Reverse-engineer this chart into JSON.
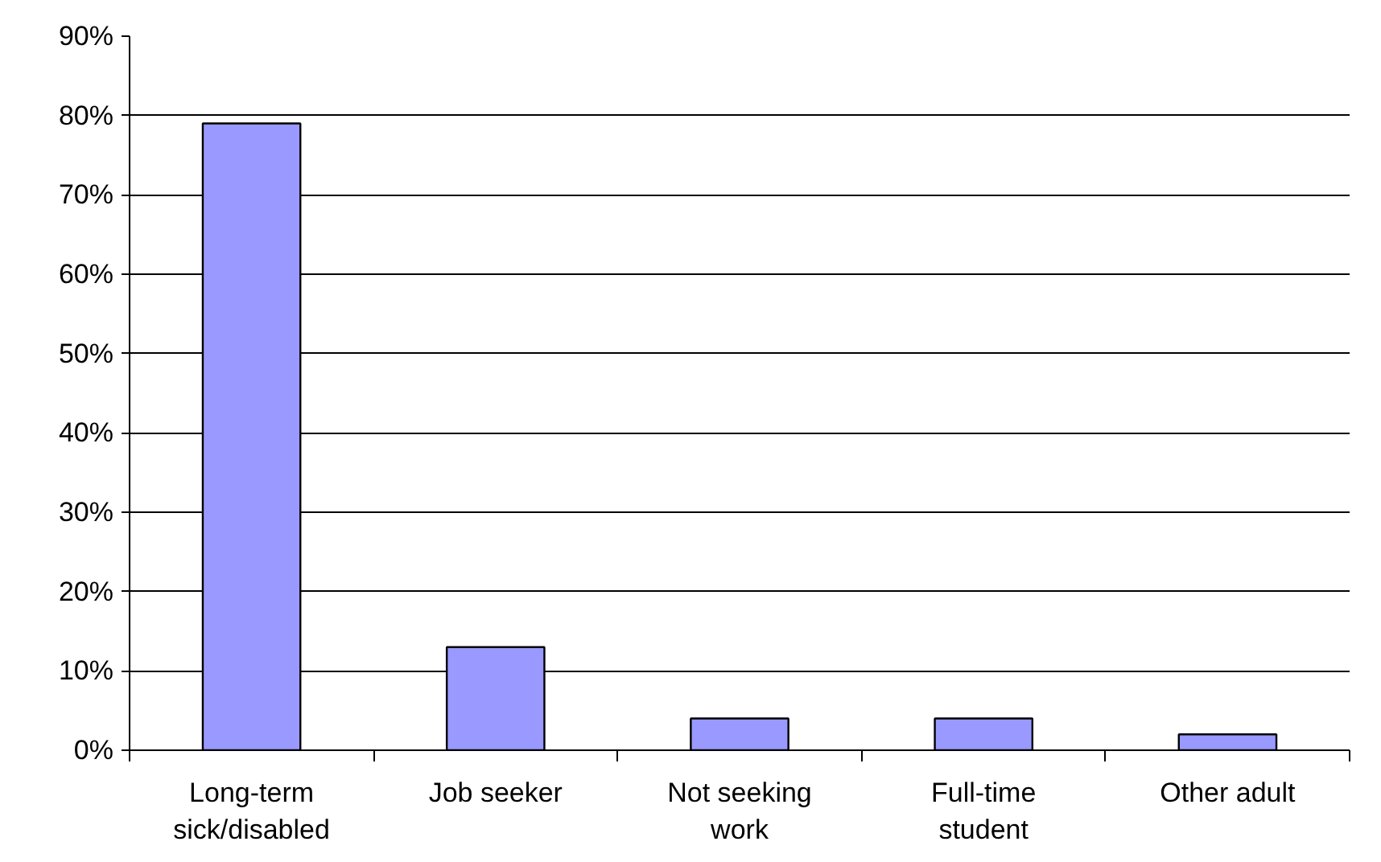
{
  "chart_data": {
    "type": "bar",
    "categories": [
      "Long-term sick/disabled",
      "Job seeker",
      "Not seeking work",
      "Full-time student",
      "Other adult"
    ],
    "values": [
      79,
      13,
      4,
      4,
      2
    ],
    "color": "#9999ff",
    "ylim": [
      0,
      90
    ],
    "yticks": [
      {
        "value": 0,
        "label": "0%"
      },
      {
        "value": 10,
        "label": "10%"
      },
      {
        "value": 20,
        "label": "20%"
      },
      {
        "value": 30,
        "label": "30%"
      },
      {
        "value": 40,
        "label": "40%"
      },
      {
        "value": 50,
        "label": "50%"
      },
      {
        "value": 60,
        "label": "60%"
      },
      {
        "value": 70,
        "label": "70%"
      },
      {
        "value": 80,
        "label": "80%"
      },
      {
        "value": 90,
        "label": "90%"
      }
    ],
    "grid": "y"
  }
}
